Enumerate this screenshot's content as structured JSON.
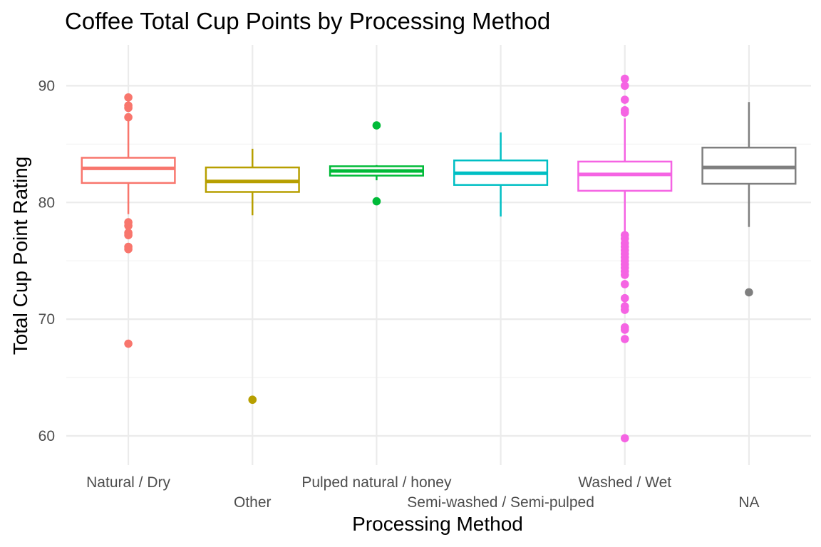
{
  "chart_data": {
    "type": "boxplot",
    "title": "Coffee Total Cup Points by Processing Method",
    "xlabel": "Processing Method",
    "ylabel": "Total Cup Point Rating",
    "ylim": [
      57.5,
      93.5
    ],
    "yticks": [
      60,
      70,
      80,
      90
    ],
    "grid": true,
    "legend": "none",
    "categories": [
      "Natural / Dry",
      "Other",
      "Pulped natural / honey",
      "Semi-washed / Semi-pulped",
      "Washed / Wet",
      "NA"
    ],
    "series": [
      {
        "category": "Natural / Dry",
        "color": "#F8766D",
        "whisker_low": 79.0,
        "q1": 81.67,
        "median": 82.92,
        "q3": 83.83,
        "whisker_high": 87.0,
        "outliers": [
          89.0,
          88.3,
          88.1,
          87.3,
          78.3,
          78.0,
          77.4,
          77.2,
          76.2,
          76.0,
          67.9
        ]
      },
      {
        "category": "Other",
        "color": "#B79F00",
        "whisker_low": 78.9,
        "q1": 80.9,
        "median": 81.8,
        "q3": 83.0,
        "whisker_high": 84.6,
        "outliers": [
          63.1
        ]
      },
      {
        "category": "Pulped natural / honey",
        "color": "#00BA38",
        "whisker_low": 81.9,
        "q1": 82.3,
        "median": 82.7,
        "q3": 83.1,
        "whisker_high": 83.2,
        "outliers": [
          86.6,
          80.1
        ]
      },
      {
        "category": "Semi-washed / Semi-pulped",
        "color": "#00BFC4",
        "whisker_low": 78.8,
        "q1": 81.5,
        "median": 82.5,
        "q3": 83.6,
        "whisker_high": 86.0,
        "outliers": []
      },
      {
        "category": "Washed / Wet",
        "color": "#F564E3",
        "whisker_low": 77.4,
        "q1": 81.0,
        "median": 82.4,
        "q3": 83.5,
        "whisker_high": 87.2,
        "outliers": [
          90.6,
          90.0,
          88.8,
          87.9,
          87.7,
          77.2,
          76.9,
          76.5,
          76.2,
          75.9,
          75.6,
          75.3,
          75.0,
          74.7,
          74.4,
          74.1,
          73.8,
          73.0,
          71.8,
          71.1,
          70.8,
          69.3,
          69.1,
          68.3,
          59.8
        ]
      },
      {
        "category": "NA",
        "color": "#7F7F7F",
        "whisker_low": 77.9,
        "q1": 81.6,
        "median": 83.0,
        "q3": 84.7,
        "whisker_high": 88.6,
        "outliers": [
          72.3
        ]
      }
    ]
  }
}
